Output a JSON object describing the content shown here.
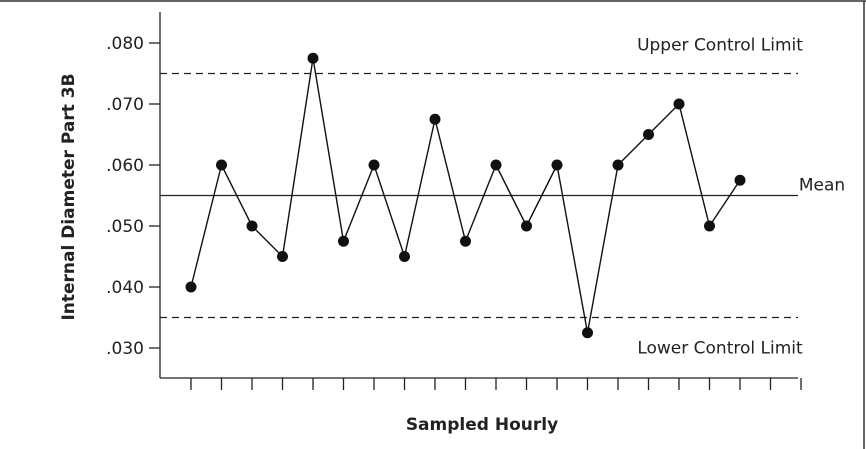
{
  "chart_data": {
    "type": "line",
    "title": "",
    "xlabel": "Sampled Hourly",
    "ylabel": "Internal Diameter Part 3B",
    "ylim": [
      0.025,
      0.085
    ],
    "y_ticks": [
      0.08,
      0.07,
      0.06,
      0.05,
      0.04,
      0.03
    ],
    "y_tick_labels": [
      ".080",
      ".070",
      ".060",
      ".050",
      ".040",
      ".030"
    ],
    "x_tick_count": 21,
    "grid": false,
    "series": [
      {
        "values": [
          0.04,
          0.06,
          0.05,
          0.045,
          0.0775,
          0.0475,
          0.06,
          0.045,
          0.0675,
          0.0475,
          0.06,
          0.05,
          0.06,
          0.0325,
          0.06,
          0.065,
          0.07,
          0.05,
          0.0575
        ]
      }
    ],
    "reference_lines": [
      {
        "id": "ucl",
        "label": "Upper Control Limit",
        "value": 0.075,
        "style": "dashed"
      },
      {
        "id": "mean",
        "label": "Mean",
        "value": 0.055,
        "style": "solid"
      },
      {
        "id": "lcl",
        "label": "Lower Control Limit",
        "value": 0.035,
        "style": "dashed"
      }
    ]
  }
}
